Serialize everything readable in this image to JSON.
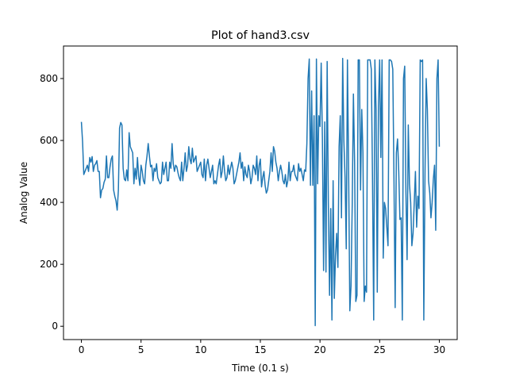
{
  "chart_data": {
    "type": "line",
    "title": "Plot of hand3.csv",
    "xlabel": "Time (0.1 s)",
    "ylabel": "Analog Value",
    "xlim": [
      -1.5,
      31.5
    ],
    "ylim": [
      -43,
      905
    ],
    "xticks": [
      0,
      5,
      10,
      15,
      20,
      25,
      30
    ],
    "xtick_labels": [
      "0",
      "5",
      "10",
      "15",
      "20",
      "25",
      "30"
    ],
    "yticks": [
      0,
      200,
      400,
      600,
      800
    ],
    "ytick_labels": [
      "0",
      "200",
      "400",
      "600",
      "800"
    ],
    "grid": false,
    "legend": "none",
    "line_color": "#1f77b4",
    "series": [
      {
        "x": [
          0.0,
          0.1,
          0.2,
          0.3,
          0.4,
          0.5,
          0.6,
          0.7,
          0.8,
          0.9,
          1.0,
          1.1,
          1.2,
          1.3,
          1.4,
          1.5,
          1.6,
          1.7,
          1.8,
          1.9,
          2.0,
          2.1,
          2.2,
          2.3,
          2.4,
          2.5,
          2.6,
          2.7,
          2.8,
          2.9,
          3.0,
          3.1,
          3.2,
          3.3,
          3.4,
          3.5,
          3.6,
          3.7,
          3.8,
          3.9,
          4.0,
          4.1,
          4.2,
          4.3,
          4.4,
          4.5,
          4.6,
          4.7,
          4.8,
          4.9,
          5.0,
          5.1,
          5.2,
          5.3,
          5.4,
          5.5,
          5.6,
          5.7,
          5.8,
          5.9,
          6.0,
          6.1,
          6.2,
          6.3,
          6.4,
          6.5,
          6.6,
          6.7,
          6.8,
          6.9,
          7.0,
          7.1,
          7.2,
          7.3,
          7.4,
          7.5,
          7.6,
          7.7,
          7.8,
          7.9,
          8.0,
          8.1,
          8.2,
          8.3,
          8.4,
          8.5,
          8.6,
          8.7,
          8.8,
          8.9,
          9.0,
          9.1,
          9.2,
          9.3,
          9.4,
          9.5,
          9.6,
          9.7,
          9.8,
          9.9,
          10.0,
          10.1,
          10.2,
          10.3,
          10.4,
          10.5,
          10.6,
          10.7,
          10.8,
          10.9,
          11.0,
          11.1,
          11.2,
          11.3,
          11.4,
          11.5,
          11.6,
          11.7,
          11.8,
          11.9,
          12.0,
          12.1,
          12.2,
          12.3,
          12.4,
          12.5,
          12.6,
          12.7,
          12.8,
          12.9,
          13.0,
          13.1,
          13.2,
          13.3,
          13.4,
          13.5,
          13.6,
          13.7,
          13.8,
          13.9,
          14.0,
          14.1,
          14.2,
          14.3,
          14.4,
          14.5,
          14.6,
          14.7,
          14.8,
          14.9,
          15.0,
          15.1,
          15.2,
          15.3,
          15.4,
          15.5,
          15.6,
          15.7,
          15.8,
          15.9,
          16.0,
          16.1,
          16.2,
          16.3,
          16.4,
          16.5,
          16.6,
          16.7,
          16.8,
          16.9,
          17.0,
          17.1,
          17.2,
          17.3,
          17.4,
          17.5,
          17.6,
          17.7,
          17.8,
          17.9,
          18.0,
          18.1,
          18.2,
          18.3,
          18.4,
          18.5,
          18.6,
          18.7,
          18.8,
          18.9,
          19.0,
          19.1,
          19.2,
          19.3,
          19.4,
          19.5,
          19.6,
          19.7,
          19.8,
          19.9,
          20.0,
          20.1,
          20.2,
          20.3,
          20.4,
          20.5,
          20.6,
          20.7,
          20.8,
          20.9,
          21.0,
          21.1,
          21.2,
          21.3,
          21.4,
          21.5,
          21.6,
          21.7,
          21.8,
          21.9,
          22.0,
          22.1,
          22.2,
          22.3,
          22.4,
          22.5,
          22.6,
          22.7,
          22.8,
          22.9,
          23.0,
          23.1,
          23.2,
          23.3,
          23.4,
          23.5,
          23.6,
          23.7,
          23.8,
          23.9,
          24.0,
          24.1,
          24.2,
          24.3,
          24.4,
          24.5,
          24.6,
          24.7,
          24.8,
          24.9,
          25.0,
          25.1,
          25.2,
          25.3,
          25.4,
          25.5,
          25.6,
          25.7,
          25.8,
          25.9,
          26.0,
          26.1,
          26.2,
          26.3,
          26.4,
          26.5,
          26.6,
          26.7,
          26.8,
          26.9,
          27.0,
          27.1,
          27.2,
          27.3,
          27.4,
          27.5,
          27.6,
          27.7,
          27.8,
          27.9,
          28.0,
          28.1,
          28.2,
          28.3,
          28.4,
          28.5,
          28.6,
          28.7,
          28.8,
          28.9,
          29.0,
          29.1,
          29.2,
          29.3,
          29.4,
          29.5,
          29.6,
          29.7,
          29.8,
          29.9,
          30.0
        ],
        "y": [
          660,
          595,
          490,
          500,
          510,
          520,
          500,
          545,
          530,
          548,
          500,
          520,
          525,
          535,
          500,
          500,
          415,
          440,
          445,
          465,
          475,
          550,
          480,
          480,
          515,
          540,
          550,
          440,
          420,
          405,
          375,
          440,
          640,
          658,
          650,
          510,
          475,
          470,
          505,
          470,
          625,
          580,
          570,
          560,
          460,
          510,
          475,
          545,
          485,
          455,
          520,
          500,
          470,
          460,
          520,
          550,
          590,
          550,
          515,
          520,
          470,
          510,
          500,
          525,
          480,
          470,
          460,
          465,
          530,
          490,
          510,
          530,
          470,
          470,
          530,
          510,
          590,
          525,
          500,
          520,
          515,
          495,
          480,
          470,
          530,
          470,
          510,
          560,
          500,
          520,
          580,
          540,
          525,
          575,
          530,
          540,
          550,
          500,
          510,
          520,
          530,
          490,
          480,
          540,
          470,
          520,
          540,
          510,
          480,
          500,
          520,
          460,
          470,
          460,
          490,
          520,
          540,
          480,
          500,
          550,
          500,
          470,
          480,
          520,
          490,
          510,
          530,
          510,
          460,
          470,
          490,
          510,
          530,
          560,
          510,
          530,
          470,
          515,
          490,
          480,
          520,
          500,
          460,
          480,
          520,
          510,
          490,
          550,
          470,
          520,
          540,
          450,
          480,
          500,
          455,
          430,
          440,
          470,
          500,
          560,
          500,
          580,
          565,
          530,
          510,
          470,
          500,
          520,
          500,
          470,
          460,
          490,
          450,
          470,
          530,
          470,
          500,
          500,
          520,
          490,
          480,
          470,
          525,
          500,
          510,
          490,
          470,
          505,
          500,
          590,
          800,
          863,
          455,
          760,
          455,
          680,
          2,
          863,
          460,
          680,
          645,
          850,
          610,
          180,
          660,
          175,
          855,
          395,
          100,
          380,
          20,
          470,
          90,
          230,
          300,
          190,
          580,
          680,
          350,
          865,
          600,
          480,
          250,
          860,
          500,
          50,
          130,
          390,
          750,
          530,
          80,
          100,
          860,
          860,
          440,
          700,
          560,
          80,
          130,
          110,
          860,
          860,
          860,
          830,
          480,
          20,
          860,
          700,
          110,
          710,
          860,
          545,
          860,
          220,
          400,
          380,
          320,
          260,
          860,
          860,
          855,
          830,
          475,
          60,
          560,
          605,
          500,
          345,
          350,
          20,
          800,
          840,
          435,
          215,
          650,
          460,
          400,
          260,
          300,
          400,
          500,
          320,
          420,
          380,
          860,
          855,
          860,
          20,
          490,
          800,
          700,
          470,
          430,
          350,
          400,
          475,
          520,
          310,
          800,
          860,
          580
        ]
      }
    ]
  }
}
